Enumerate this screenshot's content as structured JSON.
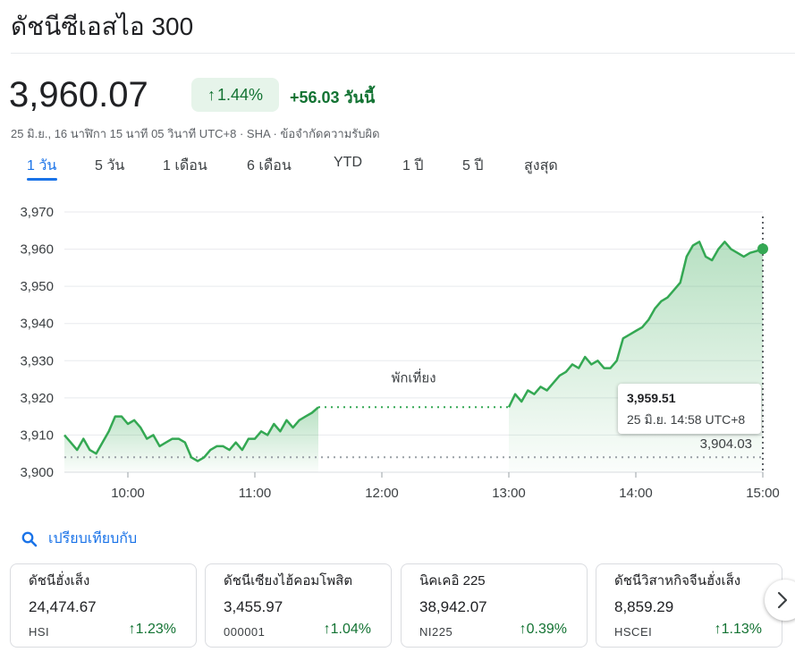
{
  "header": {
    "title": "ดัชนีซีเอสไอ 300"
  },
  "quote": {
    "price": "3,960.07",
    "change_pct": "1.44%",
    "change_abs": "+56.03 วันนี้",
    "meta": "25 มิ.ย., 16 นาฬิกา 15 นาที 05 วินาที UTC+8 · SHA · ข้อจำกัดความรับผิด"
  },
  "tabs": [
    {
      "label": "1 วัน",
      "active": true
    },
    {
      "label": "5 วัน"
    },
    {
      "label": "1 เดือน"
    },
    {
      "label": "6 เดือน"
    },
    {
      "label": "YTD"
    },
    {
      "label": "1 ปี"
    },
    {
      "label": "5 ปี"
    },
    {
      "label": "สูงสุด"
    }
  ],
  "chart_data": {
    "type": "line",
    "x_ticks": [
      "10:00",
      "11:00",
      "12:00",
      "13:00",
      "14:00",
      "15:00"
    ],
    "y_ticks": [
      "3,900",
      "3,910",
      "3,920",
      "3,930",
      "3,940",
      "3,950",
      "3,960",
      "3,970"
    ],
    "xlim": [
      "09:30",
      "15:00"
    ],
    "ylim": [
      3900,
      3970
    ],
    "previous_close": 3904.03,
    "previous_close_label": "3,904.03",
    "lunch_break_label": "พักเที่ยง",
    "lunch_break": [
      "11:30",
      "13:00"
    ],
    "line_color": "#34a853",
    "fill_color": "#34a853",
    "morning": [
      [
        "09:30",
        3910
      ],
      [
        "09:33",
        3908
      ],
      [
        "09:36",
        3906
      ],
      [
        "09:39",
        3909
      ],
      [
        "09:42",
        3906
      ],
      [
        "09:45",
        3905
      ],
      [
        "09:48",
        3908
      ],
      [
        "09:51",
        3911
      ],
      [
        "09:54",
        3915
      ],
      [
        "09:57",
        3915
      ],
      [
        "10:00",
        3913
      ],
      [
        "10:03",
        3914
      ],
      [
        "10:06",
        3912
      ],
      [
        "10:09",
        3909
      ],
      [
        "10:12",
        3910
      ],
      [
        "10:15",
        3907
      ],
      [
        "10:18",
        3908
      ],
      [
        "10:21",
        3909
      ],
      [
        "10:24",
        3909
      ],
      [
        "10:27",
        3908
      ],
      [
        "10:30",
        3904
      ],
      [
        "10:33",
        3903
      ],
      [
        "10:36",
        3904
      ],
      [
        "10:39",
        3906
      ],
      [
        "10:42",
        3907
      ],
      [
        "10:45",
        3907
      ],
      [
        "10:48",
        3906
      ],
      [
        "10:51",
        3908
      ],
      [
        "10:54",
        3906
      ],
      [
        "10:57",
        3909
      ],
      [
        "11:00",
        3909
      ],
      [
        "11:03",
        3911
      ],
      [
        "11:06",
        3910
      ],
      [
        "11:09",
        3913
      ],
      [
        "11:12",
        3911
      ],
      [
        "11:15",
        3914
      ],
      [
        "11:18",
        3912
      ],
      [
        "11:21",
        3914
      ],
      [
        "11:24",
        3915
      ],
      [
        "11:27",
        3916
      ],
      [
        "11:30",
        3917.5
      ]
    ],
    "afternoon": [
      [
        "13:00",
        3917.5
      ],
      [
        "13:03",
        3921
      ],
      [
        "13:06",
        3919
      ],
      [
        "13:09",
        3922
      ],
      [
        "13:12",
        3921
      ],
      [
        "13:15",
        3923
      ],
      [
        "13:18",
        3922
      ],
      [
        "13:21",
        3924
      ],
      [
        "13:24",
        3926
      ],
      [
        "13:27",
        3927
      ],
      [
        "13:30",
        3929
      ],
      [
        "13:33",
        3928
      ],
      [
        "13:36",
        3931
      ],
      [
        "13:39",
        3929
      ],
      [
        "13:42",
        3930
      ],
      [
        "13:45",
        3928
      ],
      [
        "13:48",
        3928
      ],
      [
        "13:51",
        3930
      ],
      [
        "13:54",
        3936
      ],
      [
        "13:57",
        3937
      ],
      [
        "14:00",
        3938
      ],
      [
        "14:03",
        3939
      ],
      [
        "14:06",
        3941
      ],
      [
        "14:09",
        3944
      ],
      [
        "14:12",
        3946
      ],
      [
        "14:15",
        3947
      ],
      [
        "14:18",
        3949
      ],
      [
        "14:21",
        3951
      ],
      [
        "14:24",
        3958
      ],
      [
        "14:27",
        3961
      ],
      [
        "14:30",
        3962
      ],
      [
        "14:33",
        3958
      ],
      [
        "14:36",
        3957
      ],
      [
        "14:39",
        3960
      ],
      [
        "14:42",
        3962
      ],
      [
        "14:45",
        3960
      ],
      [
        "14:48",
        3959
      ],
      [
        "14:51",
        3958
      ],
      [
        "14:54",
        3959
      ],
      [
        "14:57",
        3959.5
      ],
      [
        "15:00",
        3960.07
      ]
    ],
    "tooltip": {
      "value": "3,959.51",
      "time": "25 มิ.ย. 14:58 UTC+8"
    }
  },
  "compare": {
    "label": "เปรียบเทียบกับ"
  },
  "cards": [
    {
      "name": "ดัชนีฮั่งเส็ง",
      "value": "24,474.67",
      "symbol": "HSI",
      "change": "1.23%"
    },
    {
      "name": "ดัชนีเซียงไฮ้คอมโพสิต",
      "value": "3,455.97",
      "symbol": "000001",
      "change": "1.04%"
    },
    {
      "name": "นิคเคอิ 225",
      "value": "38,942.07",
      "symbol": "NI225",
      "change": "0.39%"
    },
    {
      "name": "ดัชนีวิสาหกิจจีนฮั่งเส็ง",
      "value": "8,859.29",
      "symbol": "HSCEI",
      "change": "1.13%"
    }
  ],
  "colors": {
    "accent": "#1a73e8",
    "positive": "#137333",
    "positive_bg": "#e6f4ea",
    "line": "#34a853"
  },
  "icons": {
    "compare": "search-icon",
    "next": "chevron-right-icon",
    "up": "arrow-up-icon"
  }
}
